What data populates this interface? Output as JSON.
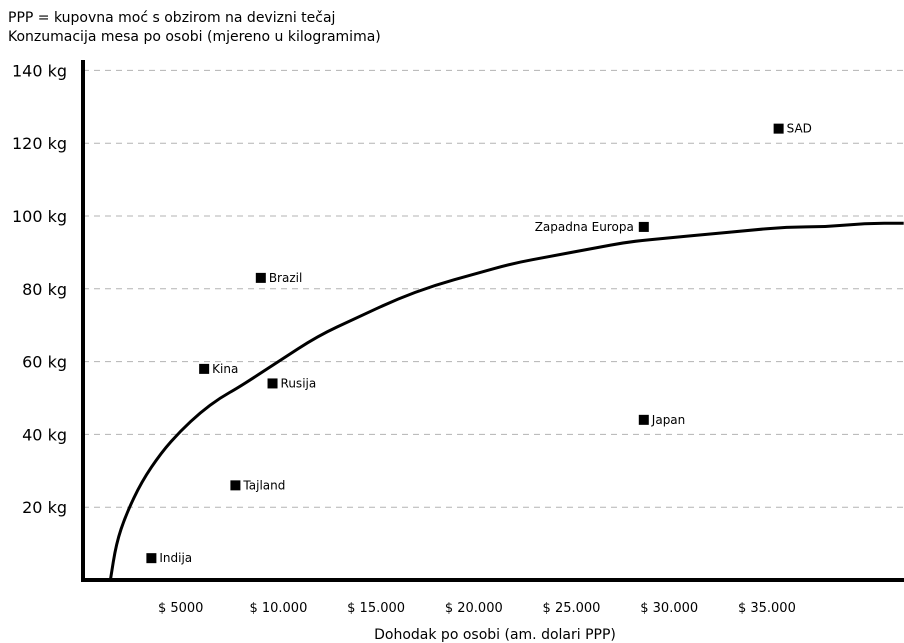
{
  "notes": {
    "line1": "PPP = kupovna moć s obzirom na devizni tečaj",
    "line2": "Konzumacija mesa po osobi (mjereno u kilogramima)"
  },
  "chart_data": {
    "type": "scatter",
    "xlabel": "Dohodak po osobi (am. dolari PPP)",
    "ylabel": "",
    "xlim": [
      0,
      42000
    ],
    "ylim": [
      0,
      140
    ],
    "grid": true,
    "x_ticks": [
      {
        "value": 5000,
        "label": "$ 5000"
      },
      {
        "value": 10000,
        "label": "$ 10.000"
      },
      {
        "value": 15000,
        "label": "$ 15.000"
      },
      {
        "value": 20000,
        "label": "$ 20.000"
      },
      {
        "value": 25000,
        "label": "$ 25.000"
      },
      {
        "value": 30000,
        "label": "$ 30.000"
      },
      {
        "value": 35000,
        "label": "$ 35.000"
      }
    ],
    "y_ticks": [
      {
        "value": 20,
        "label": "20 kg"
      },
      {
        "value": 40,
        "label": "40 kg"
      },
      {
        "value": 60,
        "label": "60 kg"
      },
      {
        "value": 80,
        "label": "80 kg"
      },
      {
        "value": 100,
        "label": "100 kg"
      },
      {
        "value": 120,
        "label": "120 kg"
      },
      {
        "value": 140,
        "label": "140 kg"
      }
    ],
    "points": [
      {
        "label": "Indija",
        "x": 3500,
        "y": 6,
        "label_side": "right"
      },
      {
        "label": "Tajland",
        "x": 7800,
        "y": 26,
        "label_side": "right"
      },
      {
        "label": "Kina",
        "x": 6200,
        "y": 58,
        "label_side": "right"
      },
      {
        "label": "Rusija",
        "x": 9700,
        "y": 54,
        "label_side": "right"
      },
      {
        "label": "Brazil",
        "x": 9100,
        "y": 83,
        "label_side": "right"
      },
      {
        "label": "Japan",
        "x": 28700,
        "y": 44,
        "label_side": "right"
      },
      {
        "label": "Zapadna Europa",
        "x": 28700,
        "y": 97,
        "label_side": "left"
      },
      {
        "label": "SAD",
        "x": 35600,
        "y": 124,
        "label_side": "right"
      }
    ],
    "trend_curve": [
      [
        1400,
        0
      ],
      [
        1700,
        10
      ],
      [
        2200,
        18
      ],
      [
        3000,
        27
      ],
      [
        4000,
        35
      ],
      [
        5000,
        41
      ],
      [
        6000,
        46
      ],
      [
        7000,
        50
      ],
      [
        8000,
        53
      ],
      [
        10000,
        60
      ],
      [
        12000,
        67
      ],
      [
        14000,
        72
      ],
      [
        16000,
        77
      ],
      [
        18000,
        81
      ],
      [
        20000,
        84
      ],
      [
        22000,
        87
      ],
      [
        24000,
        89
      ],
      [
        26000,
        91
      ],
      [
        28000,
        93
      ],
      [
        30000,
        94
      ],
      [
        32000,
        95
      ],
      [
        34000,
        96
      ],
      [
        36000,
        97
      ],
      [
        38000,
        97
      ],
      [
        40000,
        98
      ],
      [
        42000,
        98
      ]
    ]
  }
}
